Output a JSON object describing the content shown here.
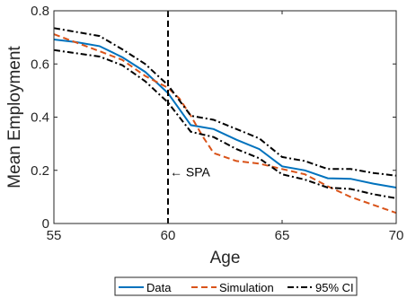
{
  "chart_data": {
    "type": "line",
    "title": "",
    "xlabel": "Age",
    "ylabel": "Mean Employment",
    "xlim": [
      55,
      70
    ],
    "ylim": [
      0,
      0.8
    ],
    "xticks": [
      55,
      60,
      65,
      70
    ],
    "yticks": [
      0,
      0.2,
      0.4,
      0.6,
      0.8
    ],
    "xtick_labels": [
      "55",
      "60",
      "65",
      "70"
    ],
    "ytick_labels": [
      "0",
      "0.2",
      "0.4",
      "0.6",
      "0.8"
    ],
    "grid": false,
    "legend_position": "bottom",
    "series": [
      {
        "name": "Data",
        "color": "#0072BD",
        "style": "solid",
        "x": [
          55,
          56,
          57,
          58,
          59,
          60,
          61,
          62,
          63,
          64,
          65,
          66,
          67,
          68,
          69,
          70
        ],
        "y": [
          0.692,
          0.682,
          0.667,
          0.625,
          0.57,
          0.49,
          0.37,
          0.355,
          0.315,
          0.28,
          0.215,
          0.2,
          0.17,
          0.168,
          0.15,
          0.135
        ]
      },
      {
        "name": "Simulation",
        "color": "#D95319",
        "style": "dashed",
        "x": [
          55,
          56,
          57,
          58,
          59,
          60,
          60.5,
          61,
          61.5,
          62,
          63,
          64,
          65,
          66,
          67,
          68,
          69,
          70
        ],
        "y": [
          0.712,
          0.68,
          0.648,
          0.615,
          0.555,
          0.51,
          0.47,
          0.405,
          0.33,
          0.265,
          0.235,
          0.225,
          0.205,
          0.185,
          0.14,
          0.1,
          0.07,
          0.04
        ]
      },
      {
        "name": "95% CI",
        "color": "#000000",
        "style": "dashdot",
        "x": [
          55,
          56,
          57,
          58,
          59,
          60,
          61,
          62,
          63,
          64,
          65,
          66,
          67,
          68,
          69,
          70
        ],
        "y": [
          0.735,
          0.72,
          0.705,
          0.655,
          0.6,
          0.52,
          0.405,
          0.39,
          0.355,
          0.32,
          0.25,
          0.235,
          0.205,
          0.205,
          0.19,
          0.18
        ]
      },
      {
        "name": "95% CI lower",
        "color": "#000000",
        "style": "dashdot",
        "legend": false,
        "x": [
          55,
          56,
          57,
          58,
          59,
          60,
          61,
          62,
          63,
          64,
          65,
          66,
          67,
          68,
          69,
          70
        ],
        "y": [
          0.652,
          0.64,
          0.628,
          0.595,
          0.535,
          0.455,
          0.345,
          0.325,
          0.28,
          0.245,
          0.185,
          0.165,
          0.135,
          0.13,
          0.11,
          0.095
        ]
      }
    ],
    "vline": {
      "x": 60,
      "color": "#000000",
      "style": "dashed"
    },
    "annotation": {
      "text": "← SPA",
      "x": 60,
      "y": 0.1
    }
  }
}
